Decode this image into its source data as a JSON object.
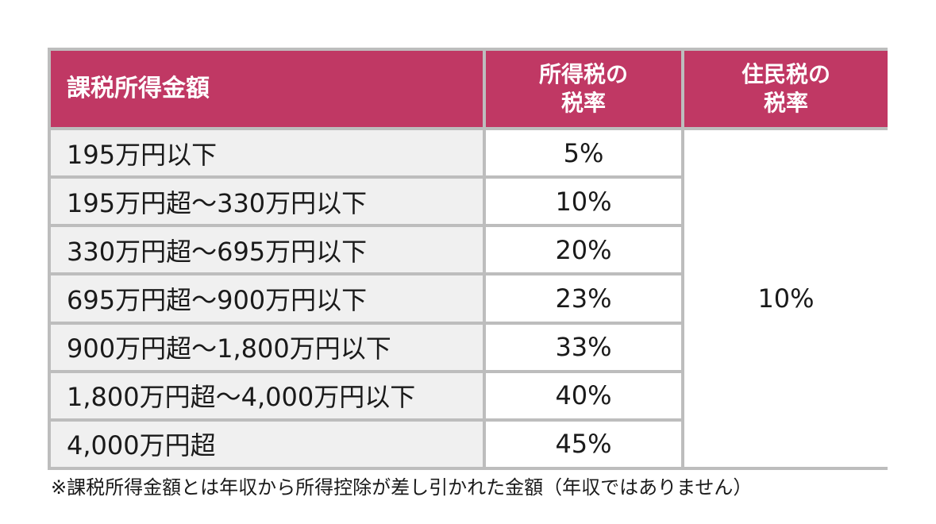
{
  "table": {
    "headers": {
      "income": "課税所得金額",
      "income_tax_line1": "所得税の",
      "income_tax_line2": "税率",
      "resident_tax_line1": "住民税の",
      "resident_tax_line2": "税率"
    },
    "rows": [
      {
        "income": "195万円以下",
        "income_tax_rate": "5%"
      },
      {
        "income": "195万円超～330万円以下",
        "income_tax_rate": "10%"
      },
      {
        "income": "330万円超～695万円以下",
        "income_tax_rate": "20%"
      },
      {
        "income": "695万円超～900万円以下",
        "income_tax_rate": "23%"
      },
      {
        "income": "900万円超～1,800万円以下",
        "income_tax_rate": "33%"
      },
      {
        "income": "1,800万円超～4,000万円以下",
        "income_tax_rate": "40%"
      },
      {
        "income": "4,000万円超",
        "income_tax_rate": "45%"
      }
    ],
    "resident_tax_rate": "10%"
  },
  "footnote": "※課税所得金額とは年収から所得控除が差し引かれた金額（年収ではありません）",
  "colors": {
    "header_bg": "#c03864",
    "header_text": "#ffffff",
    "income_cell_bg": "#f0f0f0",
    "border": "#bdbdbd"
  }
}
